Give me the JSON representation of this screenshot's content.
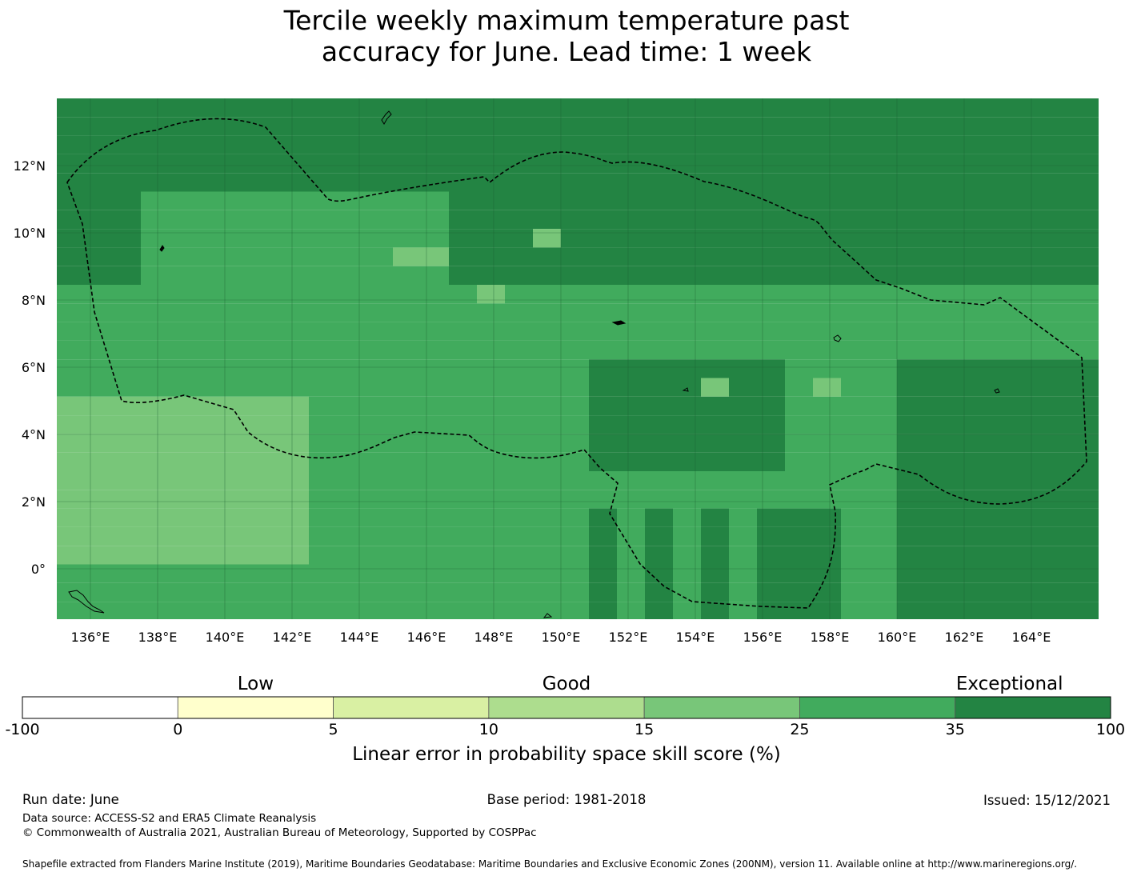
{
  "title": {
    "line1": "Tercile weekly maximum temperature past",
    "line2": "accuracy for June. Lead time: 1 week"
  },
  "map": {
    "lon_labels": [
      "136°E",
      "138°E",
      "140°E",
      "142°E",
      "144°E",
      "146°E",
      "148°E",
      "150°E",
      "152°E",
      "154°E",
      "156°E",
      "158°E",
      "160°E",
      "162°E",
      "164°E"
    ],
    "lon_values": [
      136,
      138,
      140,
      142,
      144,
      146,
      148,
      150,
      152,
      154,
      156,
      158,
      160,
      162,
      164
    ],
    "lat_labels": [
      "12°N",
      "10°N",
      "8°N",
      "6°N",
      "4°N",
      "2°N",
      "0°"
    ],
    "lat_values": [
      12,
      10,
      8,
      6,
      4,
      2,
      0
    ],
    "lon_range": [
      135.0,
      166.0
    ],
    "lat_range": [
      -1.5,
      14.0
    ],
    "grid_cell_deg": 0.833,
    "boundary": "dashed",
    "default_category": 5,
    "category_overrides": {
      "rows_note": "row index 0 = northernmost; col index 0 = westernmost",
      "cells": [
        [
          0,
          0,
          6
        ],
        [
          0,
          36,
          6
        ],
        [
          1,
          0,
          6
        ]
      ]
    }
  },
  "legend": {
    "words": [
      {
        "text": "Low"
      },
      {
        "text": "Good"
      },
      {
        "text": "Exceptional"
      }
    ],
    "bins": [
      {
        "from": -100,
        "to": 0,
        "color": "#ffffff"
      },
      {
        "from": 0,
        "to": 5,
        "color": "#ffffcc"
      },
      {
        "from": 5,
        "to": 10,
        "color": "#d9f0a3"
      },
      {
        "from": 10,
        "to": 15,
        "color": "#addd8e"
      },
      {
        "from": 15,
        "to": 25,
        "color": "#78c679"
      },
      {
        "from": 25,
        "to": 35,
        "color": "#41ab5d"
      },
      {
        "from": 35,
        "to": 100,
        "color": "#238443"
      }
    ],
    "tick_labels": [
      "-100",
      "0",
      "5",
      "10",
      "15",
      "25",
      "35",
      "100"
    ],
    "axis_label": "Linear error in probability space skill score (%)"
  },
  "footer": {
    "run_date": "Run date: June",
    "base_period": "Base period: 1981-2018",
    "issued": "Issued: 15/12/2021",
    "data_source": "Data source: ACCESS-S2 and ERA5 Climate Reanalysis",
    "copyright": "© Commonwealth of Australia 2021, Australian Bureau of Meteorology, Supported by COSPPac",
    "shapefile": "Shapefile extracted from Flanders Marine Institute (2019), Maritime Boundaries Geodatabase: Maritime Boundaries and Exclusive Economic Zones (200NM), version 11. Available online at http://www.marineregions.org/."
  }
}
